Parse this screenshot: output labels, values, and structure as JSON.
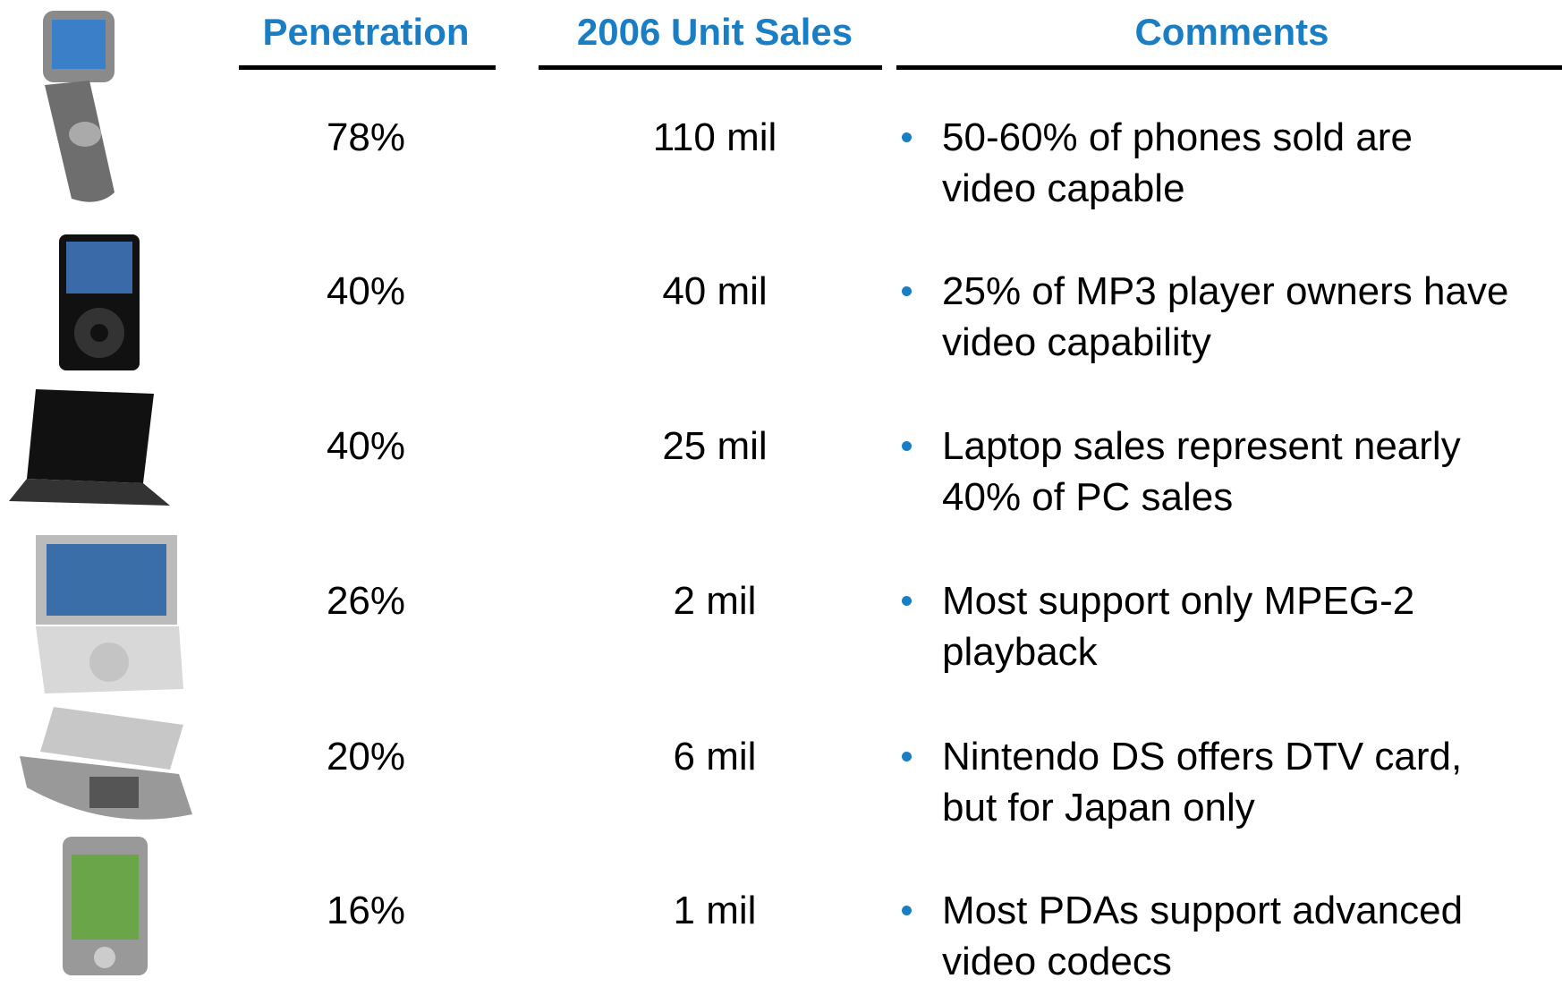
{
  "header": {
    "columns": [
      "Penetration",
      "2006 Unit Sales",
      "Comments"
    ]
  },
  "table": {
    "rows": [
      {
        "penetration": "78%",
        "unit_sales": "110 mil",
        "comment": [
          "50-60% of phones sold are",
          "video capable"
        ]
      },
      {
        "penetration": "40%",
        "unit_sales": "40 mil",
        "comment": [
          "25% of MP3 player owners have",
          "video capability"
        ]
      },
      {
        "penetration": "40%",
        "unit_sales": "25 mil",
        "comment": [
          "Laptop sales represent nearly",
          "40% of PC sales"
        ]
      },
      {
        "penetration": "26%",
        "unit_sales": "2 mil",
        "comment": [
          "Most support only MPEG-2",
          "playback"
        ]
      },
      {
        "penetration": "20%",
        "unit_sales": "6 mil",
        "comment": [
          "Nintendo DS offers DTV card,",
          "but for Japan only"
        ]
      },
      {
        "penetration": "16%",
        "unit_sales": "1 mil",
        "comment": [
          "Most PDAs support advanced",
          "video codecs"
        ]
      }
    ]
  }
}
